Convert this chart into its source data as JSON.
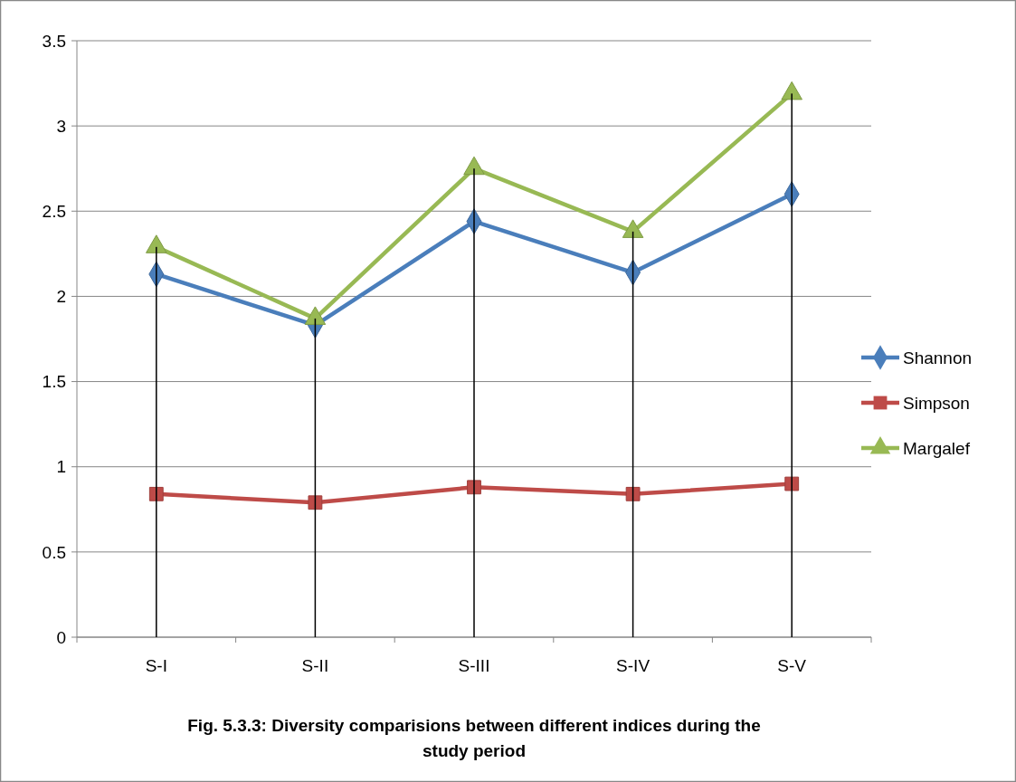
{
  "chart_data": {
    "type": "line",
    "title": "Fig. 5.3.3: Diversity comparisions between different indices during the study period",
    "categories": [
      "S-I",
      "S-II",
      "S-III",
      "S-IV",
      "S-V"
    ],
    "series": [
      {
        "name": "Shannon",
        "color": "#4a7ebb",
        "marker": "diamond",
        "values": [
          2.13,
          1.83,
          2.44,
          2.14,
          2.6
        ]
      },
      {
        "name": "Simpson",
        "color": "#be4b48",
        "marker": "square",
        "values": [
          0.84,
          0.79,
          0.88,
          0.84,
          0.9
        ]
      },
      {
        "name": "Margalef",
        "color": "#98b954",
        "marker": "triangle",
        "values": [
          2.29,
          1.87,
          2.75,
          2.38,
          3.19
        ]
      },
      {
        "type": "bar",
        "color": "#000000",
        "values": [
          2.29,
          1.87,
          2.75,
          2.38,
          3.19
        ]
      }
    ],
    "ylim": [
      0,
      3.5
    ],
    "yticks": [
      0,
      0.5,
      1,
      1.5,
      2,
      2.5,
      3,
      3.5
    ],
    "grid": "y",
    "legend": "right"
  }
}
